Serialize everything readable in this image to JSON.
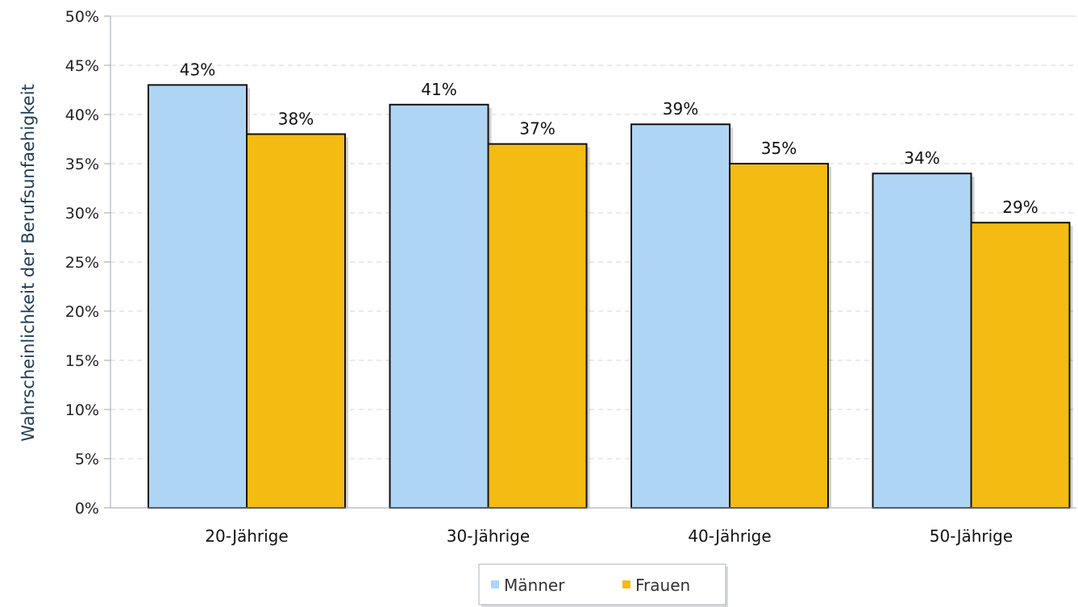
{
  "chart_data": {
    "type": "bar",
    "title": "",
    "xlabel": "",
    "ylabel": "Wahrscheinlichkeit der Berufsunfaehigkeit",
    "ylim": [
      0,
      50
    ],
    "y_ticks": [
      "0%",
      "5%",
      "10%",
      "15%",
      "20%",
      "25%",
      "30%",
      "35%",
      "40%",
      "45%",
      "50%"
    ],
    "categories": [
      "20-Jährige",
      "30-Jährige",
      "40-Jährige",
      "50-Jährige"
    ],
    "series": [
      {
        "name": "Männer",
        "color": "#afd5f5",
        "values": [
          43,
          41,
          39,
          34
        ],
        "labels": [
          "43%",
          "41%",
          "39%",
          "34%"
        ]
      },
      {
        "name": "Frauen",
        "color": "#f4bb12",
        "values": [
          38,
          37,
          35,
          29
        ],
        "labels": [
          "38%",
          "37%",
          "35%",
          "29%"
        ]
      }
    ],
    "grid": true,
    "legend": "bottom-center"
  }
}
